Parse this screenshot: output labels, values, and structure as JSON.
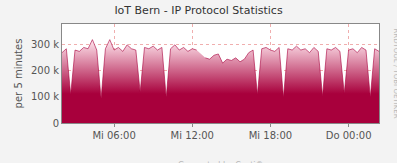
{
  "chart_data": {
    "type": "area",
    "title": "IoT Bern - IP Protocol Statistics",
    "y_label": "per 5 minutes",
    "annotations": [
      "RRDTOOL / TOBI OETIKER",
      "Generated by Cacti®"
    ],
    "categories": [
      null,
      null,
      null,
      null,
      null,
      null,
      null,
      null,
      null,
      null,
      null,
      null,
      "Mi 06:00",
      null,
      null,
      null,
      null,
      null,
      null,
      null,
      null,
      null,
      null,
      null,
      null,
      null,
      null,
      null,
      null,
      null,
      "Mi 12:00",
      null,
      null,
      null,
      null,
      null,
      null,
      null,
      null,
      null,
      null,
      null,
      null,
      null,
      null,
      null,
      null,
      null,
      "Mi 18:00",
      null,
      null,
      null,
      null,
      null,
      null,
      null,
      null,
      null,
      null,
      null,
      null,
      null,
      null,
      null,
      null,
      null,
      "Do 00:00",
      null,
      null,
      null,
      null,
      null,
      null,
      null
    ],
    "values": [
      270000,
      285000,
      110000,
      280000,
      275000,
      290000,
      285000,
      320000,
      280000,
      95000,
      285000,
      320000,
      280000,
      290000,
      275000,
      300000,
      285000,
      280000,
      120000,
      290000,
      285000,
      295000,
      280000,
      290000,
      100000,
      285000,
      300000,
      280000,
      290000,
      275000,
      285000,
      280000,
      null,
      250000,
      245000,
      260000,
      265000,
      230000,
      245000,
      240000,
      250000,
      235000,
      245000,
      270000,
      280000,
      110000,
      285000,
      290000,
      280000,
      275000,
      290000,
      100000,
      285000,
      280000,
      295000,
      280000,
      285000,
      270000,
      290000,
      275000,
      105000,
      285000,
      280000,
      290000,
      275000,
      115000,
      280000,
      285000,
      270000,
      290000,
      280000,
      100000,
      285000,
      275000
    ],
    "color": "#a8003c",
    "ylim": [
      0,
      380000
    ],
    "yticks": [
      0,
      {
        "value": 100000,
        "label": "100 k"
      },
      {
        "value": 200000,
        "label": "200 k"
      },
      {
        "value": 300000,
        "label": "300 k"
      }
    ],
    "grid": true
  }
}
